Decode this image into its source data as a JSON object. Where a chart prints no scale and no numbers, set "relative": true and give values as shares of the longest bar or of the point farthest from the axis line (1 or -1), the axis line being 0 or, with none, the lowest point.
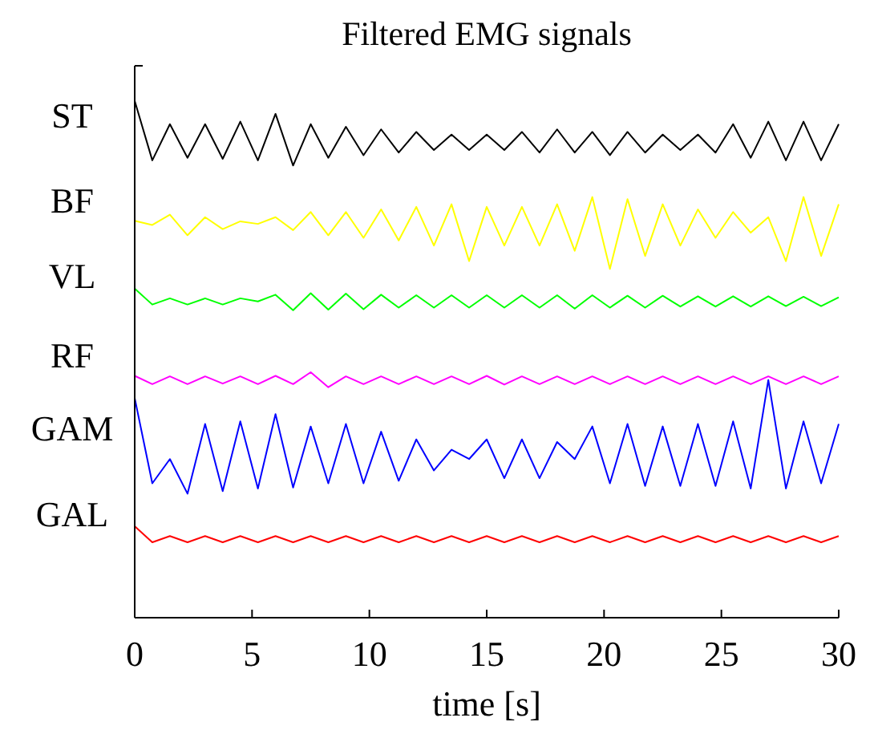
{
  "chart_data": {
    "type": "line",
    "title": "Filtered EMG signals",
    "xlabel": "time [s]",
    "relative": true,
    "xlim": [
      0,
      30
    ],
    "xticks": [
      0,
      5,
      10,
      15,
      20,
      25,
      30
    ],
    "grid": false,
    "marker": "none",
    "line_style": "solid",
    "x": [
      0,
      0.75,
      1.5,
      2.25,
      3,
      3.75,
      4.5,
      5.25,
      6,
      6.75,
      7.5,
      8.25,
      9,
      9.75,
      10.5,
      11.25,
      12,
      12.75,
      13.5,
      14.25,
      15,
      15.75,
      16.5,
      17.25,
      18,
      18.75,
      19.5,
      20.25,
      21,
      21.75,
      22.5,
      23.25,
      24,
      24.75,
      25.5,
      26.25,
      27,
      27.75,
      28.5,
      29.25,
      30
    ],
    "series": [
      {
        "name": "ST",
        "color": "#000000",
        "values": [
          1.0,
          0.885,
          0.955,
          0.89,
          0.955,
          0.888,
          0.96,
          0.885,
          0.975,
          0.875,
          0.955,
          0.89,
          0.95,
          0.895,
          0.945,
          0.9,
          0.94,
          0.905,
          0.935,
          0.905,
          0.935,
          0.905,
          0.94,
          0.9,
          0.945,
          0.9,
          0.94,
          0.895,
          0.94,
          0.9,
          0.935,
          0.905,
          0.935,
          0.9,
          0.955,
          0.89,
          0.96,
          0.885,
          0.96,
          0.885,
          0.955
        ]
      },
      {
        "name": "BF",
        "color": "#ffff00",
        "values": [
          0.768,
          0.76,
          0.78,
          0.74,
          0.775,
          0.752,
          0.767,
          0.762,
          0.775,
          0.75,
          0.785,
          0.74,
          0.785,
          0.735,
          0.79,
          0.73,
          0.795,
          0.72,
          0.8,
          0.69,
          0.795,
          0.72,
          0.795,
          0.72,
          0.8,
          0.71,
          0.814,
          0.675,
          0.81,
          0.7,
          0.8,
          0.72,
          0.79,
          0.735,
          0.785,
          0.745,
          0.775,
          0.69,
          0.814,
          0.7,
          0.8
        ]
      },
      {
        "name": "VL",
        "color": "#00ff00",
        "values": [
          0.637,
          0.606,
          0.618,
          0.606,
          0.618,
          0.606,
          0.618,
          0.612,
          0.625,
          0.595,
          0.628,
          0.596,
          0.627,
          0.597,
          0.625,
          0.6,
          0.624,
          0.6,
          0.624,
          0.6,
          0.624,
          0.6,
          0.624,
          0.6,
          0.624,
          0.598,
          0.624,
          0.6,
          0.623,
          0.6,
          0.623,
          0.602,
          0.622,
          0.602,
          0.622,
          0.602,
          0.622,
          0.603,
          0.621,
          0.603,
          0.62
        ]
      },
      {
        "name": "RF",
        "color": "#ff00ff",
        "values": [
          0.468,
          0.452,
          0.467,
          0.452,
          0.467,
          0.453,
          0.467,
          0.452,
          0.468,
          0.452,
          0.475,
          0.446,
          0.467,
          0.452,
          0.467,
          0.452,
          0.467,
          0.452,
          0.467,
          0.452,
          0.468,
          0.451,
          0.467,
          0.452,
          0.467,
          0.452,
          0.467,
          0.452,
          0.467,
          0.452,
          0.467,
          0.452,
          0.467,
          0.452,
          0.467,
          0.452,
          0.467,
          0.452,
          0.467,
          0.452,
          0.467
        ]
      },
      {
        "name": "GAM",
        "color": "#0000ff",
        "values": [
          0.425,
          0.26,
          0.307,
          0.24,
          0.375,
          0.245,
          0.38,
          0.25,
          0.394,
          0.252,
          0.37,
          0.26,
          0.375,
          0.26,
          0.36,
          0.265,
          0.345,
          0.285,
          0.325,
          0.307,
          0.345,
          0.27,
          0.345,
          0.27,
          0.34,
          0.307,
          0.37,
          0.26,
          0.375,
          0.255,
          0.37,
          0.255,
          0.375,
          0.255,
          0.38,
          0.25,
          0.46,
          0.25,
          0.38,
          0.26,
          0.375
        ]
      },
      {
        "name": "GAL",
        "color": "#ff0000",
        "values": [
          0.177,
          0.146,
          0.158,
          0.146,
          0.158,
          0.146,
          0.158,
          0.146,
          0.158,
          0.146,
          0.158,
          0.146,
          0.158,
          0.146,
          0.158,
          0.146,
          0.158,
          0.146,
          0.158,
          0.146,
          0.158,
          0.146,
          0.158,
          0.146,
          0.158,
          0.146,
          0.158,
          0.146,
          0.158,
          0.146,
          0.158,
          0.146,
          0.158,
          0.146,
          0.158,
          0.146,
          0.158,
          0.146,
          0.158,
          0.146,
          0.158
        ]
      }
    ]
  }
}
